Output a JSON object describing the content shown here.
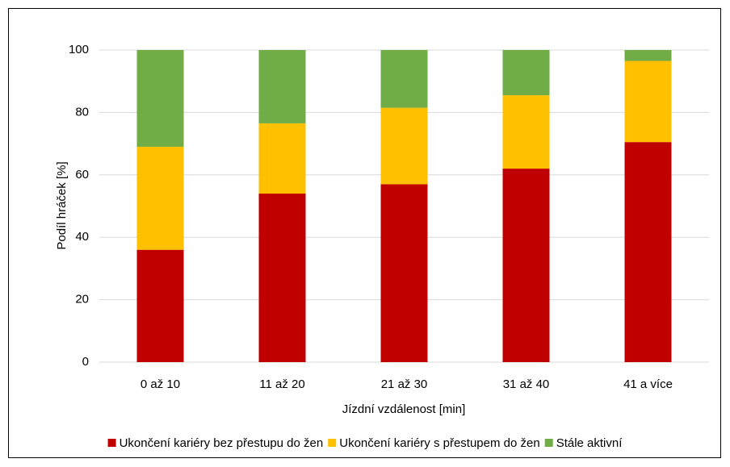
{
  "chart_data": {
    "type": "stacked_bar",
    "categories": [
      "0 až 10",
      "11 až 20",
      "21 až 30",
      "31 až 40",
      "41 a více"
    ],
    "series": [
      {
        "name": "Ukončení kariéry bez přestupu do žen",
        "color": "#c00000",
        "values": [
          36,
          54,
          57,
          62,
          70.5
        ]
      },
      {
        "name": "Ukončení kariéry s přestupem do žen",
        "color": "#ffc000",
        "values": [
          33,
          22.5,
          24.5,
          23.5,
          26
        ]
      },
      {
        "name": "Stále aktivní",
        "color": "#70ad47",
        "values": [
          31,
          23.5,
          18.5,
          14.5,
          3.5
        ]
      }
    ],
    "xlabel": "Jízdní vzdálenost [min]",
    "ylabel": "Podíl hráček [%]",
    "ylim": [
      0,
      100
    ],
    "yticks": [
      0,
      20,
      40,
      60,
      80,
      100
    ],
    "grid": true,
    "legend": "bottom"
  }
}
